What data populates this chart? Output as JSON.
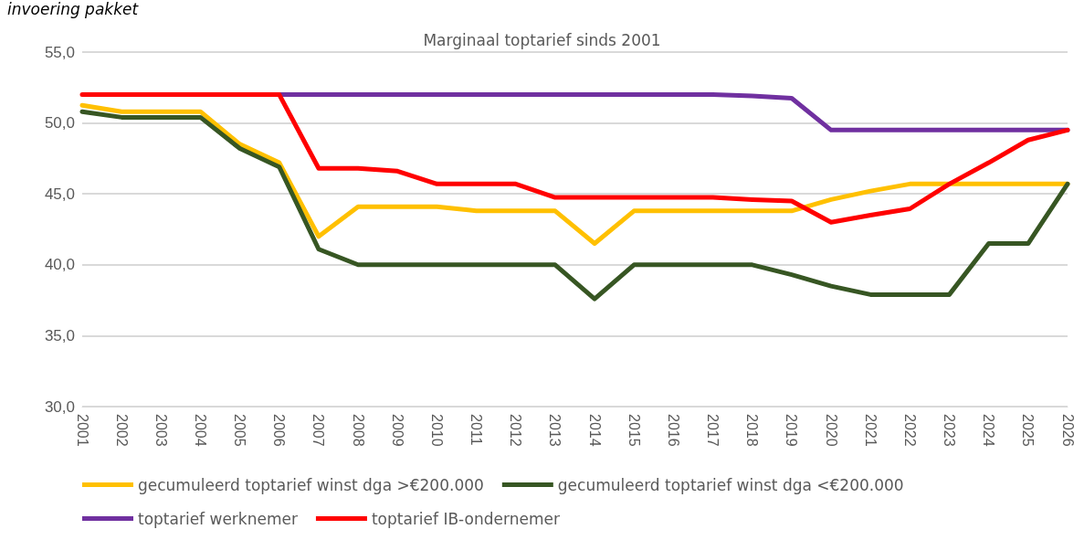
{
  "chart_data": {
    "type": "line",
    "title": "Marginaal toptarief sinds 2001",
    "annotations": [
      "invoering pakket"
    ],
    "categories": [
      "2001",
      "2002",
      "2003",
      "2004",
      "2005",
      "2006",
      "2007",
      "2008",
      "2009",
      "2010",
      "2011",
      "2012",
      "2013",
      "2014",
      "2015",
      "2016",
      "2017",
      "2018",
      "2019",
      "2020",
      "2021",
      "2022",
      "2023",
      "2024",
      "2025",
      "2026"
    ],
    "series": [
      {
        "name": "gecumuleerd toptarief winst dga >€200.000",
        "color": "#ffc000",
        "values": [
          51.25,
          50.8,
          50.8,
          50.8,
          48.5,
          47.2,
          42.0,
          44.1,
          44.1,
          44.1,
          43.8,
          43.8,
          43.8,
          41.5,
          43.8,
          43.8,
          43.8,
          43.8,
          43.8,
          44.6,
          45.2,
          45.7,
          45.7,
          45.7,
          45.7,
          45.7
        ]
      },
      {
        "name": "gecumuleerd toptarief winst dga <€200.000",
        "color": "#375623",
        "values": [
          50.8,
          50.4,
          50.4,
          50.4,
          48.2,
          46.9,
          41.1,
          40.0,
          40.0,
          40.0,
          40.0,
          40.0,
          40.0,
          37.6,
          40.0,
          40.0,
          40.0,
          40.0,
          39.3,
          38.5,
          37.9,
          37.9,
          37.9,
          41.5,
          41.5,
          45.7
        ]
      },
      {
        "name": "toptarief werknemer",
        "color": "#7030a0",
        "values": [
          null,
          null,
          null,
          null,
          null,
          52,
          52,
          52,
          52,
          52,
          52,
          52,
          52,
          52,
          52,
          52,
          52,
          51.9,
          51.75,
          49.5,
          49.5,
          49.5,
          49.5,
          49.5,
          49.5,
          49.5
        ]
      },
      {
        "name": "toptarief IB-ondernemer",
        "color": "#ff0000",
        "values": [
          52,
          52,
          52,
          52,
          52,
          52,
          46.8,
          46.8,
          46.6,
          45.7,
          45.7,
          45.7,
          44.75,
          44.75,
          44.75,
          44.75,
          44.75,
          44.6,
          44.5,
          43.0,
          43.5,
          43.95,
          45.7,
          47.2,
          48.8,
          49.5
        ]
      }
    ],
    "ylim": [
      30,
      55
    ],
    "yticks": [
      {
        "value": 30,
        "label": "30,0"
      },
      {
        "value": 35,
        "label": "35,0"
      },
      {
        "value": 40,
        "label": "40,0"
      },
      {
        "value": 45,
        "label": "45,0"
      },
      {
        "value": 50,
        "label": "50,0"
      },
      {
        "value": 55,
        "label": "55,0"
      }
    ],
    "grid": "y",
    "legend": "bottom",
    "marker": "none",
    "line_style": "solid"
  }
}
